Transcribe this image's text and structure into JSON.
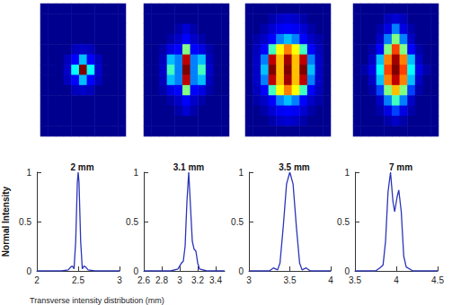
{
  "chart_data": [
    {
      "type": "heatmap",
      "tick_labels": false,
      "color_range": [
        0,
        1
      ],
      "cells": [
        [
          0,
          0,
          0,
          0,
          0,
          0,
          0,
          0,
          0,
          0,
          0
        ],
        [
          0,
          0,
          0,
          0,
          0,
          0,
          0,
          0,
          0,
          0,
          0
        ],
        [
          0,
          0,
          0,
          0,
          0,
          0,
          0,
          0,
          0,
          0,
          0
        ],
        [
          0,
          0,
          0,
          0,
          0,
          0,
          0,
          0,
          0,
          0,
          0
        ],
        [
          0,
          0,
          0,
          0,
          0.08,
          0.1,
          0.08,
          0,
          0,
          0,
          0
        ],
        [
          0,
          0,
          0,
          0.08,
          0.2,
          0.35,
          0.2,
          0.08,
          0,
          0,
          0
        ],
        [
          0,
          0,
          0,
          0.1,
          0.4,
          1,
          0.4,
          0.1,
          0,
          0,
          0
        ],
        [
          0,
          0,
          0,
          0.08,
          0.2,
          0.35,
          0.2,
          0.08,
          0,
          0,
          0
        ],
        [
          0,
          0,
          0,
          0,
          0.08,
          0.1,
          0.08,
          0,
          0,
          0,
          0
        ],
        [
          0,
          0,
          0,
          0,
          0,
          0,
          0,
          0,
          0,
          0,
          0
        ],
        [
          0,
          0,
          0,
          0,
          0,
          0,
          0,
          0,
          0,
          0,
          0
        ],
        [
          0,
          0,
          0,
          0,
          0,
          0,
          0,
          0,
          0,
          0,
          0
        ],
        [
          0,
          0,
          0,
          0,
          0,
          0,
          0,
          0,
          0,
          0,
          0
        ]
      ]
    },
    {
      "type": "heatmap",
      "tick_labels": false,
      "color_range": [
        0,
        1
      ],
      "cells": [
        [
          0,
          0,
          0,
          0,
          0,
          0,
          0,
          0,
          0,
          0,
          0
        ],
        [
          0,
          0,
          0,
          0,
          0,
          0,
          0,
          0,
          0,
          0,
          0
        ],
        [
          0,
          0,
          0,
          0,
          0.05,
          0.12,
          0.05,
          0,
          0,
          0,
          0
        ],
        [
          0,
          0,
          0,
          0.05,
          0.1,
          0.2,
          0.1,
          0.05,
          0,
          0,
          0
        ],
        [
          0,
          0,
          0.05,
          0.15,
          0.2,
          0.5,
          0.2,
          0.15,
          0.05,
          0,
          0
        ],
        [
          0,
          0,
          0.08,
          0.35,
          0.3,
          0.9,
          0.3,
          0.35,
          0.08,
          0,
          0
        ],
        [
          0,
          0,
          0.1,
          0.45,
          0.3,
          1,
          0.3,
          0.45,
          0.1,
          0,
          0
        ],
        [
          0,
          0,
          0.08,
          0.35,
          0.3,
          0.9,
          0.3,
          0.35,
          0.08,
          0,
          0
        ],
        [
          0,
          0,
          0.05,
          0.15,
          0.2,
          0.5,
          0.2,
          0.15,
          0.05,
          0,
          0
        ],
        [
          0,
          0,
          0,
          0.05,
          0.1,
          0.2,
          0.1,
          0.05,
          0,
          0,
          0
        ],
        [
          0,
          0,
          0,
          0,
          0.05,
          0.12,
          0.05,
          0,
          0,
          0,
          0
        ],
        [
          0,
          0,
          0,
          0,
          0,
          0,
          0,
          0,
          0,
          0,
          0
        ],
        [
          0,
          0,
          0,
          0,
          0,
          0,
          0,
          0,
          0,
          0,
          0
        ]
      ]
    },
    {
      "type": "heatmap",
      "tick_labels": false,
      "color_range": [
        0,
        1
      ],
      "cells": [
        [
          0,
          0,
          0,
          0,
          0,
          0,
          0,
          0,
          0,
          0,
          0
        ],
        [
          0,
          0,
          0,
          0.05,
          0.1,
          0.12,
          0.1,
          0.05,
          0,
          0,
          0
        ],
        [
          0,
          0,
          0.05,
          0.12,
          0.18,
          0.2,
          0.18,
          0.12,
          0.05,
          0,
          0
        ],
        [
          0,
          0.05,
          0.1,
          0.2,
          0.3,
          0.35,
          0.3,
          0.2,
          0.1,
          0.05,
          0
        ],
        [
          0,
          0.08,
          0.2,
          0.45,
          0.6,
          0.7,
          0.6,
          0.45,
          0.2,
          0.08,
          0
        ],
        [
          0,
          0.1,
          0.3,
          0.9,
          0.65,
          0.95,
          0.65,
          0.9,
          0.3,
          0.1,
          0
        ],
        [
          0,
          0.1,
          0.35,
          1,
          0.65,
          1,
          0.65,
          1,
          0.35,
          0.1,
          0
        ],
        [
          0,
          0.1,
          0.3,
          0.9,
          0.65,
          0.95,
          0.65,
          0.9,
          0.3,
          0.1,
          0
        ],
        [
          0,
          0.08,
          0.2,
          0.45,
          0.6,
          0.7,
          0.6,
          0.45,
          0.2,
          0.08,
          0
        ],
        [
          0,
          0.05,
          0.1,
          0.2,
          0.3,
          0.35,
          0.3,
          0.2,
          0.1,
          0.05,
          0
        ],
        [
          0,
          0,
          0.05,
          0.12,
          0.18,
          0.2,
          0.18,
          0.12,
          0.05,
          0,
          0
        ],
        [
          0,
          0,
          0,
          0.05,
          0.1,
          0.12,
          0.1,
          0.05,
          0,
          0,
          0
        ],
        [
          0,
          0,
          0,
          0,
          0,
          0,
          0,
          0,
          0,
          0,
          0
        ]
      ]
    },
    {
      "type": "heatmap",
      "tick_labels": false,
      "color_range": [
        0,
        1
      ],
      "cells": [
        [
          0,
          0,
          0,
          0,
          0,
          0,
          0,
          0,
          0,
          0,
          0
        ],
        [
          0,
          0,
          0,
          0,
          0.08,
          0.12,
          0.08,
          0,
          0,
          0,
          0
        ],
        [
          0,
          0,
          0,
          0.05,
          0.15,
          0.3,
          0.15,
          0.05,
          0,
          0,
          0
        ],
        [
          0,
          0,
          0,
          0.1,
          0.3,
          0.5,
          0.3,
          0.1,
          0,
          0,
          0
        ],
        [
          0,
          0,
          0.05,
          0.2,
          0.5,
          0.75,
          0.5,
          0.2,
          0.05,
          0,
          0
        ],
        [
          0,
          0,
          0.1,
          0.35,
          0.7,
          0.95,
          0.7,
          0.35,
          0.1,
          0,
          0
        ],
        [
          0,
          0.05,
          0.15,
          0.4,
          0.75,
          1,
          0.75,
          0.4,
          0.15,
          0.05,
          0
        ],
        [
          0,
          0,
          0.1,
          0.35,
          0.7,
          0.9,
          0.7,
          0.35,
          0.1,
          0,
          0
        ],
        [
          0,
          0,
          0.05,
          0.25,
          0.5,
          0.65,
          0.5,
          0.25,
          0.05,
          0,
          0
        ],
        [
          0,
          0,
          0,
          0.1,
          0.3,
          0.45,
          0.3,
          0.1,
          0,
          0,
          0
        ],
        [
          0,
          0,
          0,
          0.05,
          0.15,
          0.25,
          0.15,
          0.05,
          0,
          0,
          0
        ],
        [
          0,
          0,
          0,
          0,
          0.05,
          0.1,
          0.05,
          0,
          0,
          0,
          0
        ],
        [
          0,
          0,
          0,
          0,
          0,
          0,
          0,
          0,
          0,
          0,
          0
        ]
      ]
    },
    {
      "type": "line",
      "title": "2 mm",
      "ylabel": "Normal Intensity",
      "xlabel": "Transverse intensity distribution (mm)",
      "x": [
        2.0,
        2.3,
        2.38,
        2.41,
        2.43,
        2.45,
        2.47,
        2.49,
        2.5,
        2.51,
        2.53,
        2.55,
        2.57,
        2.59,
        2.62,
        2.7,
        3.0
      ],
      "values": [
        0,
        0,
        0.01,
        0.04,
        0.05,
        0.02,
        0.3,
        0.9,
        1,
        0.9,
        0.3,
        0.02,
        0.05,
        0.04,
        0.01,
        0,
        0
      ],
      "xlim": [
        2,
        3
      ],
      "xticks": [
        2,
        2.5,
        3
      ],
      "ylim": [
        0,
        1
      ],
      "yticks": [
        0,
        0.5,
        1
      ],
      "color": "#2a34b8",
      "grid": false
    },
    {
      "type": "line",
      "title": "3.1 mm",
      "x": [
        2.6,
        2.9,
        2.98,
        3.02,
        3.04,
        3.06,
        3.08,
        3.1,
        3.12,
        3.14,
        3.16,
        3.18,
        3.2,
        3.22,
        3.3,
        3.5
      ],
      "values": [
        0,
        0,
        0.02,
        0.08,
        0.1,
        0.25,
        0.7,
        1,
        0.65,
        0.3,
        0.22,
        0.2,
        0.08,
        0.02,
        0,
        0
      ],
      "xlim": [
        2.6,
        3.5
      ],
      "xticks": [
        2.6,
        2.8,
        3,
        3.2,
        3.4
      ],
      "ylim": [
        0,
        1
      ],
      "yticks": [
        0,
        0.5,
        1
      ],
      "color": "#2a34b8",
      "grid": false
    },
    {
      "type": "line",
      "title": "3.5 mm",
      "x": [
        3.0,
        3.25,
        3.3,
        3.35,
        3.38,
        3.42,
        3.46,
        3.5,
        3.54,
        3.58,
        3.62,
        3.65,
        3.7,
        3.75,
        4.0
      ],
      "values": [
        0,
        0,
        0.03,
        0.01,
        0.08,
        0.45,
        0.88,
        1,
        0.88,
        0.45,
        0.08,
        0.01,
        0.03,
        0,
        0
      ],
      "xlim": [
        3,
        4
      ],
      "xticks": [
        3,
        3.5,
        4
      ],
      "ylim": [
        0,
        1
      ],
      "yticks": [
        0,
        0.5,
        1
      ],
      "color": "#2a34b8",
      "grid": false
    },
    {
      "type": "line",
      "title": "7 mm",
      "x": [
        3.5,
        3.75,
        3.8,
        3.84,
        3.87,
        3.9,
        3.93,
        3.96,
        3.98,
        4.01,
        4.03,
        4.06,
        4.09,
        4.12,
        4.2,
        4.5
      ],
      "values": [
        0,
        0,
        0.03,
        0.06,
        0.3,
        0.8,
        1,
        0.7,
        0.6,
        0.75,
        0.82,
        0.6,
        0.15,
        0.04,
        0,
        0
      ],
      "xlim": [
        3.5,
        4.5
      ],
      "xticks": [
        3.5,
        4,
        4.5
      ],
      "ylim": [
        0,
        1
      ],
      "yticks": [
        0,
        0.5,
        1
      ],
      "color": "#2a34b8",
      "grid": false
    }
  ]
}
